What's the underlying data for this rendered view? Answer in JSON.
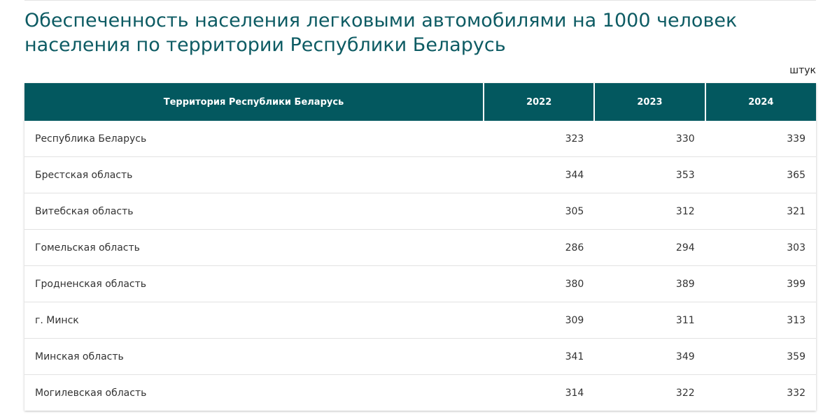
{
  "header": {
    "title_lines": [
      "Обеспеченность населения легковыми автомобилями на 1000 человек",
      "населения по территории Республики Беларусь"
    ],
    "unit": "штук"
  },
  "table": {
    "columns": [
      "Территория Республики Беларусь",
      "2022",
      "2023",
      "2024"
    ],
    "rows": [
      [
        "Республика Беларусь",
        323,
        330,
        339
      ],
      [
        "Брестская область",
        344,
        353,
        365
      ],
      [
        "Витебская область",
        305,
        312,
        321
      ],
      [
        "Гомельская область",
        286,
        294,
        303
      ],
      [
        "Гродненская область",
        380,
        389,
        399
      ],
      [
        "г. Минск",
        309,
        311,
        313
      ],
      [
        "Минская область",
        341,
        349,
        359
      ],
      [
        "Могилевская область",
        314,
        322,
        332
      ]
    ]
  }
}
